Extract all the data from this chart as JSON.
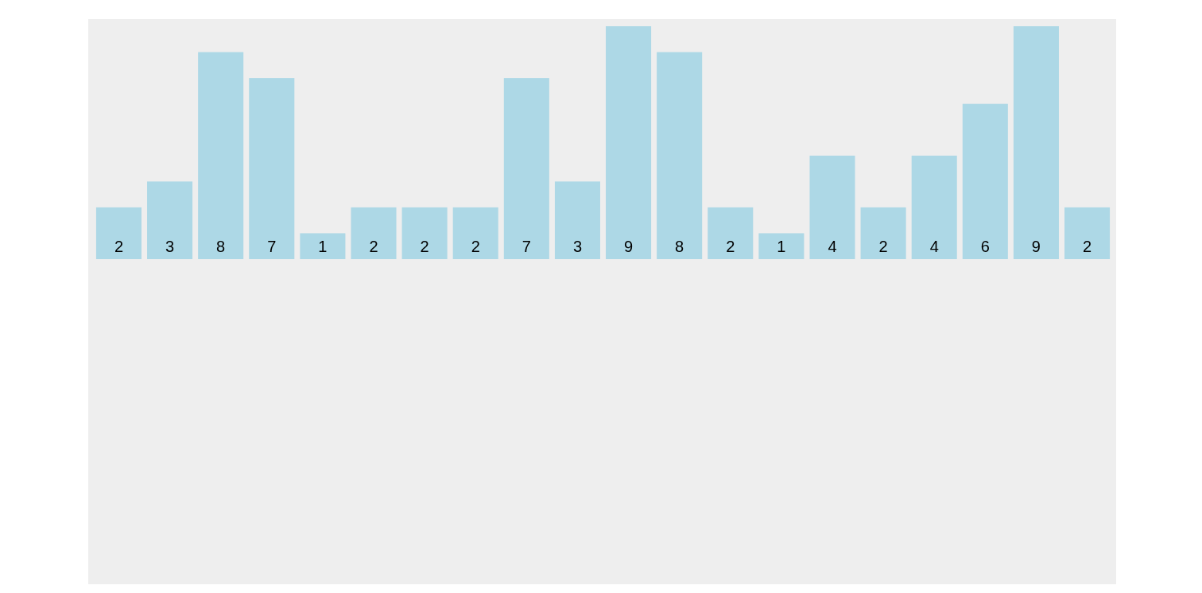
{
  "chart_data": {
    "type": "bar",
    "categories": [
      null,
      null,
      null,
      null,
      null,
      null,
      null,
      null,
      null,
      null,
      null,
      null,
      null,
      null,
      null,
      null,
      null,
      null,
      null,
      null
    ],
    "values": [
      2,
      3,
      8,
      7,
      1,
      2,
      2,
      2,
      7,
      3,
      9,
      8,
      2,
      1,
      4,
      2,
      4,
      6,
      9,
      2
    ],
    "color": "#add8e6",
    "data_labels": true
  }
}
